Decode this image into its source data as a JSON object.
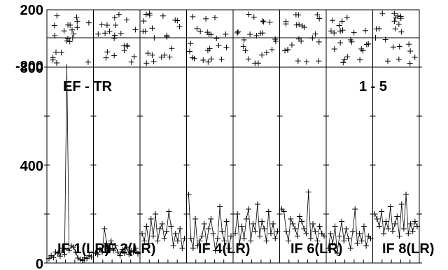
{
  "chart_data": {
    "type": "line",
    "panel_labels": [
      "IF 1(LR)",
      "IF 2(LR)",
      "IF 4(LR)",
      "IF 6(LR)",
      "IF 8(LR)"
    ],
    "annotations": [
      "EF - TR",
      "1 - 5"
    ],
    "top_panel": {
      "type": "scatter",
      "ylim": [
        -200,
        200
      ],
      "y_ticks": [
        "200",
        "-200"
      ],
      "center_line": 0
    },
    "main_panel": {
      "ylim": [
        0,
        800
      ],
      "y_ticks": [
        "800",
        "400",
        "0"
      ],
      "panels": 8,
      "marker": "+"
    },
    "series": [
      {
        "values": [
          18,
          30,
          22,
          45,
          40,
          28,
          60,
          35,
          800,
          50,
          70,
          65,
          45,
          20,
          15,
          10,
          22,
          18,
          30,
          25
        ]
      },
      {
        "values": [
          40,
          35,
          55,
          45,
          140,
          80,
          60,
          90,
          50,
          70,
          45,
          30,
          55,
          40,
          65,
          35,
          50,
          45,
          60,
          38
        ]
      },
      {
        "values": [
          120,
          90,
          150,
          80,
          180,
          110,
          200,
          90,
          140,
          160,
          100,
          130,
          210,
          150,
          70,
          120,
          90,
          140,
          60,
          100
        ]
      },
      {
        "values": [
          280,
          100,
          60,
          180,
          70,
          90,
          110,
          160,
          80,
          140,
          180,
          120,
          50,
          100,
          230,
          130,
          90,
          170,
          60,
          110
        ]
      },
      {
        "values": [
          120,
          200,
          80,
          150,
          100,
          180,
          220,
          90,
          160,
          130,
          240,
          110,
          170,
          140,
          90,
          210,
          120,
          160,
          100,
          130
        ]
      },
      {
        "values": [
          220,
          210,
          130,
          90,
          180,
          160,
          140,
          110,
          190,
          170,
          140,
          120,
          290,
          100,
          160,
          130,
          90,
          150,
          120,
          110
        ]
      },
      {
        "values": [
          60,
          120,
          80,
          150,
          40,
          110,
          170,
          90,
          140,
          100,
          60,
          130,
          220,
          80,
          120,
          90,
          150,
          70,
          110,
          100
        ]
      },
      {
        "values": [
          200,
          180,
          150,
          210,
          120,
          170,
          140,
          230,
          130,
          160,
          190,
          110,
          240,
          140,
          280,
          120,
          160,
          130,
          170,
          150
        ]
      }
    ]
  }
}
